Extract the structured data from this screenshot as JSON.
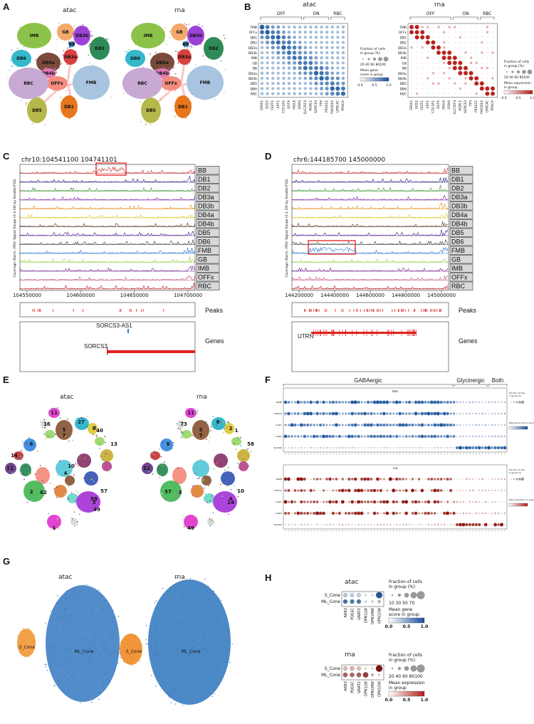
{
  "panels": {
    "A": "A",
    "B": "B",
    "C": "C",
    "D": "D",
    "E": "E",
    "F": "F",
    "G": "G",
    "H": "H"
  },
  "modalities": {
    "atac": "atac",
    "rna": "rna"
  },
  "A": {
    "clusters": [
      {
        "name": "GB",
        "color": "#f4a96b"
      },
      {
        "name": "IMB",
        "color": "#8cc24a"
      },
      {
        "name": "DB3b",
        "color": "#9b42d6"
      },
      {
        "name": "BB",
        "color": "#3b7fc4"
      },
      {
        "name": "DB2",
        "color": "#2e8b57"
      },
      {
        "name": "DB6",
        "color": "#35b7cc"
      },
      {
        "name": "DB4a",
        "color": "#7a4a3a"
      },
      {
        "name": "DB3a",
        "color": "#d94040"
      },
      {
        "name": "DB4b",
        "color": "#e07ab6"
      },
      {
        "name": "OFFx",
        "color": "#f48c80"
      },
      {
        "name": "RBC",
        "color": "#c7a9d4"
      },
      {
        "name": "FMB",
        "color": "#a8c4e0"
      },
      {
        "name": "DB5",
        "color": "#b5b84a"
      },
      {
        "name": "DB1",
        "color": "#e8761c"
      }
    ]
  },
  "B": {
    "groups": [
      "OFF",
      "ON",
      "RBC"
    ],
    "rows": [
      "FMB",
      "OFFx",
      "DB1",
      "DB2",
      "DB3a",
      "DB3b",
      "IMB",
      "GB",
      "BB",
      "DB4a",
      "DB4b",
      "DB5",
      "DB6",
      "RBC"
    ],
    "genes": [
      "GRIK1",
      "SCG2",
      "FEZF1",
      "ERF1",
      "COL5A1",
      "EDFX",
      "INSL6",
      "GSN4",
      "SLC35F4",
      "AGBL1",
      "SORCS3",
      "TTR",
      "PRSS11",
      "PHOD1A",
      "LRRC4C",
      "PRKCA"
    ],
    "legend_size_title": "Fraction of cells in group (%)",
    "legend_size_ticks_atac": "20 40 60 80100",
    "legend_color_title_atac": "Mean gene score in group",
    "legend_color_ticks_atac": [
      "0.0",
      "0.5",
      "1.0"
    ],
    "legend_size_ticks_rna": "20 40 60 80100",
    "legend_color_title_rna": "Mean expression in group",
    "legend_color_ticks_rna": [
      "0.0",
      "0.5",
      "1.0"
    ]
  },
  "C": {
    "region": "chr10:104541100  104741101",
    "ylabel": "Coverage (Norm. ATAC Signal Range (0-4.26) by ReadsInTSS)",
    "tracks": [
      "BB",
      "DB1",
      "DB2",
      "DB3a",
      "DB3b",
      "DB4a",
      "DB4b",
      "DB5",
      "DB6",
      "FMB",
      "GB",
      "IMB",
      "OFFx",
      "RBC"
    ],
    "xticks": [
      "104550000",
      "104600000",
      "104650000",
      "104700000"
    ],
    "peaks_label": "Peaks",
    "genes_label": "Genes",
    "gene1": "SORCS3-AS1",
    "gene2": "SORCS3"
  },
  "D": {
    "region": "chr6:144185700   145000000",
    "ylabel": "Coverage (Norm. ATAC Signal Range (0-1.19) by ReadsInTSS)",
    "tracks": [
      "BB",
      "DB1",
      "DB2",
      "DB3a",
      "DB3b",
      "DB4a",
      "DB4b",
      "DB5",
      "DB6",
      "FMB",
      "GB",
      "IMB",
      "OFFx",
      "RBC"
    ],
    "xticks": [
      "144200000",
      "144400000",
      "144600000",
      "144800000",
      "145000000"
    ],
    "peaks_label": "Peaks",
    "genes_label": "Genes",
    "gene1": "UTRN"
  },
  "E": {
    "labels_atac": [
      "11",
      "16",
      "5",
      "7",
      "12",
      "6",
      "27",
      "8",
      "40",
      "13",
      "2",
      "62",
      "1",
      "58",
      "57",
      "3",
      "49",
      "4",
      "10",
      "14"
    ],
    "labels_rna": [
      "11",
      "73",
      "5",
      "7",
      "12",
      "6",
      "8",
      "2",
      "1",
      "58",
      "57",
      "3",
      "49",
      "4",
      "10",
      "14"
    ]
  },
  "F": {
    "groups": [
      "GABAergic",
      "Glycinergic",
      "Both"
    ],
    "sub_atac": "atac",
    "sub_rna": "rna",
    "genes": [
      "NAPB",
      "TFAP2A",
      "GAD1",
      "GAD2",
      "SLC6A9"
    ],
    "legend_size_title": "Fraction of cells in group (%)",
    "legend_color_atac": "Mean gene score in group",
    "legend_color_rna": "Mean expression in group"
  },
  "G": {
    "S_Cone": "S_Cone",
    "ML_Cone": "ML_Cone"
  },
  "H": {
    "rows": [
      "S_Cone",
      "ML_Cone"
    ],
    "genes": [
      "ARR3",
      "PDE6C",
      "GNAT2",
      "OPN1LW",
      "OPN1MW",
      "OPN1SW"
    ],
    "size_title": "Fraction of cells in group (%)",
    "size_ticks_atac": "10  30  50  70",
    "color_title_atac": "Mean gene score in group",
    "size_ticks_rna": "20 40 60 80100",
    "color_title_rna": "Mean expression in group",
    "cticks": [
      "0.0",
      "0.5",
      "1.0"
    ],
    "atac_scores": [
      [
        0.25,
        0.2,
        0.2,
        0.05,
        0.05,
        0.95
      ],
      [
        0.8,
        0.75,
        0.75,
        0.1,
        0.1,
        0.3
      ]
    ],
    "atac_sizes": [
      [
        0.5,
        0.5,
        0.5,
        0.1,
        0.1,
        0.9
      ],
      [
        0.55,
        0.55,
        0.55,
        0.15,
        0.15,
        0.3
      ]
    ],
    "rna_scores": [
      [
        0.2,
        0.25,
        0.2,
        0.05,
        0.05,
        0.95
      ],
      [
        0.6,
        0.55,
        0.6,
        0.75,
        0.2,
        0.1
      ]
    ],
    "rna_sizes": [
      [
        0.55,
        0.55,
        0.5,
        0.1,
        0.1,
        0.95
      ],
      [
        0.6,
        0.6,
        0.6,
        0.75,
        0.3,
        0.15
      ]
    ]
  }
}
